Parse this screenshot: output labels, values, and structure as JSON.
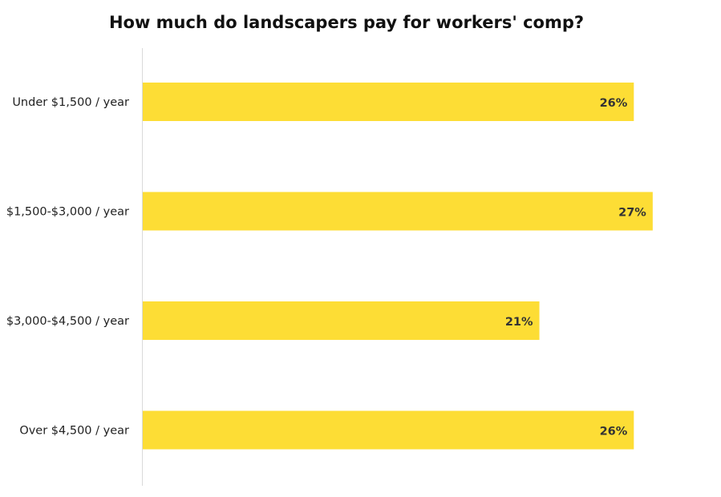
{
  "chart_data": {
    "type": "bar",
    "orientation": "horizontal",
    "title": "How much do landscapers pay for workers' comp?",
    "categories": [
      "Under $1,500 / year",
      "$1,500-$3,000 / year",
      "$3,000-$4,500 / year",
      "Over $4,500 / year"
    ],
    "values": [
      26,
      27,
      21,
      26
    ],
    "value_labels": [
      "26%",
      "27%",
      "21%",
      "26%"
    ],
    "unit": "%",
    "xlim": [
      0,
      28
    ],
    "grid": false,
    "legend": "none",
    "colors": {
      "bar": "#FDDD35",
      "axis": "#d9d9d9"
    }
  }
}
